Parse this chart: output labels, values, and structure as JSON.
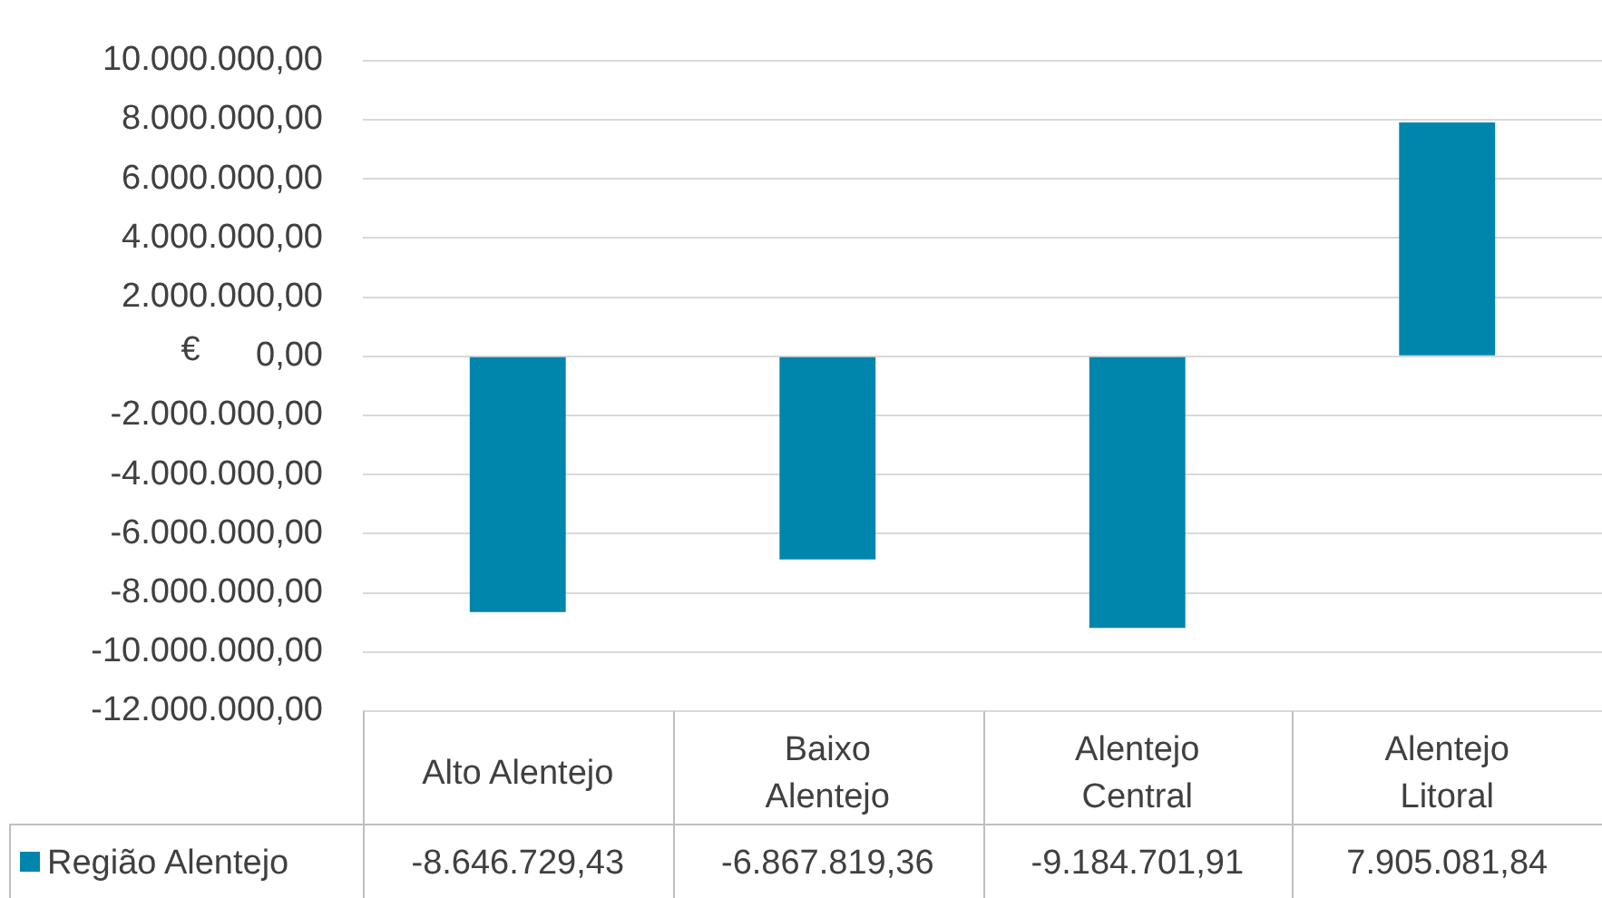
{
  "chart_data": {
    "type": "bar",
    "ylabel": "€",
    "categories": [
      "Alto Alentejo",
      "Baixo Alentejo",
      "Alentejo Central",
      "Alentejo Litoral"
    ],
    "series": [
      {
        "name": "Região Alentejo",
        "color": "#0085ad",
        "values": [
          -8646729.43,
          -6867819.36,
          -9184701.91,
          7905081.84
        ],
        "value_labels": [
          "-8.646.729,43",
          "-6.867.819,36",
          "-9.184.701,91",
          "7.905.081,84"
        ]
      }
    ],
    "ylim": [
      -12000000,
      10000000
    ],
    "yticks": [
      {
        "value": -12000000,
        "label": "-12.000.000,00"
      },
      {
        "value": -10000000,
        "label": "-10.000.000,00"
      },
      {
        "value": -8000000,
        "label": "-8.000.000,00"
      },
      {
        "value": -6000000,
        "label": "-6.000.000,00"
      },
      {
        "value": -4000000,
        "label": "-4.000.000,00"
      },
      {
        "value": -2000000,
        "label": "-2.000.000,00"
      },
      {
        "value": 0,
        "label": "0,00"
      },
      {
        "value": 2000000,
        "label": "2.000.000,00"
      },
      {
        "value": 4000000,
        "label": "4.000.000,00"
      },
      {
        "value": 6000000,
        "label": "6.000.000,00"
      },
      {
        "value": 8000000,
        "label": "8.000.000,00"
      },
      {
        "value": 10000000,
        "label": "10.000.000,00"
      }
    ],
    "grid": "y",
    "legend": "bottom left"
  }
}
